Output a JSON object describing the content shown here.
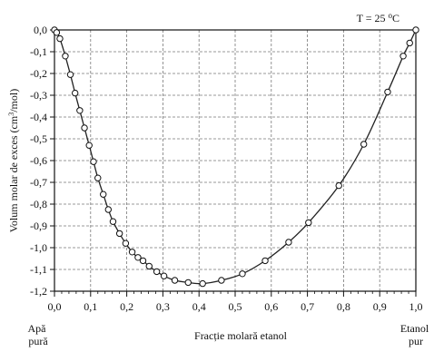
{
  "chart_data": {
    "type": "line",
    "title": "",
    "annotation": {
      "text_prefix": "T = 25 ",
      "superscript": "o",
      "text_suffix": "C"
    },
    "xlabel": "Fracție molară etanol",
    "ylabel": {
      "prefix": "Volum molar de exces (cm",
      "superscript": "3",
      "suffix": "/mol)"
    },
    "xlim": [
      0.0,
      1.0
    ],
    "ylim": [
      -1.2,
      0.0
    ],
    "grid": true,
    "grid_style": "dashed",
    "x_ticks": [
      "0,0",
      "0,1",
      "0,2",
      "0,3",
      "0,4",
      "0,5",
      "0,6",
      "0,7",
      "0,8",
      "0,9",
      "1,0"
    ],
    "y_ticks": [
      "0,0",
      "-0,1",
      "-0,2",
      "-0,3",
      "-0,4",
      "-0,5",
      "-0,6",
      "-0,7",
      "-0,8",
      "-0,9",
      "-1,0",
      "-1,1",
      "-1,2"
    ],
    "end_labels": {
      "left": [
        "Apă",
        "pură"
      ],
      "right": [
        "Etanol",
        "pur"
      ]
    },
    "series": [
      {
        "marker": "open-circle",
        "points": [
          [
            0.0,
            0.0
          ],
          [
            0.006,
            -0.012
          ],
          [
            0.015,
            -0.04
          ],
          [
            0.03,
            -0.12
          ],
          [
            0.044,
            -0.205
          ],
          [
            0.057,
            -0.29
          ],
          [
            0.07,
            -0.37
          ],
          [
            0.083,
            -0.45
          ],
          [
            0.096,
            -0.53
          ],
          [
            0.108,
            -0.605
          ],
          [
            0.12,
            -0.68
          ],
          [
            0.135,
            -0.755
          ],
          [
            0.149,
            -0.825
          ],
          [
            0.162,
            -0.88
          ],
          [
            0.18,
            -0.935
          ],
          [
            0.197,
            -0.98
          ],
          [
            0.215,
            -1.02
          ],
          [
            0.231,
            -1.045
          ],
          [
            0.245,
            -1.06
          ],
          [
            0.262,
            -1.085
          ],
          [
            0.283,
            -1.11
          ],
          [
            0.303,
            -1.13
          ],
          [
            0.333,
            -1.15
          ],
          [
            0.37,
            -1.16
          ],
          [
            0.41,
            -1.165
          ],
          [
            0.462,
            -1.15
          ],
          [
            0.52,
            -1.12
          ],
          [
            0.583,
            -1.06
          ],
          [
            0.648,
            -0.975
          ],
          [
            0.703,
            -0.885
          ],
          [
            0.787,
            -0.715
          ],
          [
            0.856,
            -0.525
          ],
          [
            0.922,
            -0.285
          ],
          [
            0.965,
            -0.12
          ],
          [
            0.983,
            -0.06
          ],
          [
            1.0,
            0.0
          ]
        ]
      }
    ]
  }
}
